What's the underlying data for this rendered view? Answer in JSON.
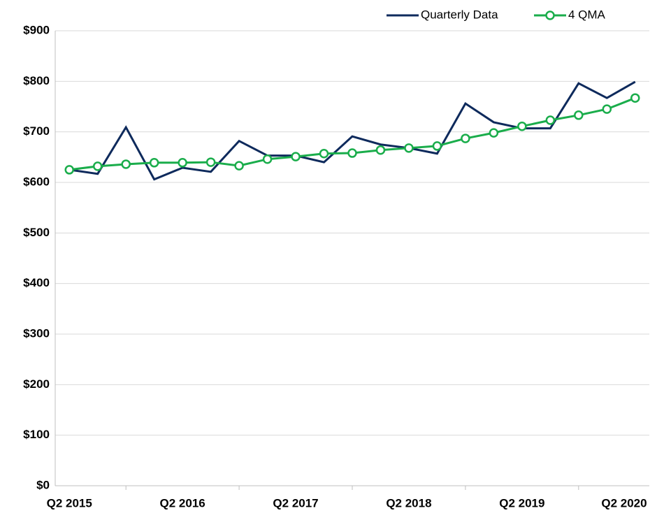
{
  "chart_data": {
    "type": "line",
    "categories": [
      "Q2 2015",
      null,
      null,
      null,
      "Q2 2016",
      null,
      null,
      null,
      "Q2 2017",
      null,
      null,
      null,
      "Q2 2018",
      null,
      null,
      null,
      "Q2 2019",
      null,
      null,
      null,
      "Q2 2020"
    ],
    "series": [
      {
        "name": "Quarterly Data",
        "color": "#0e2a5c",
        "marker": false,
        "values": [
          625,
          617,
          709,
          606,
          629,
          621,
          682,
          653,
          653,
          640,
          691,
          675,
          668,
          657,
          756,
          719,
          707,
          707,
          796,
          767,
          799
        ]
      },
      {
        "name": "4 QMA",
        "color": "#1aad4b",
        "marker": true,
        "values": [
          625,
          632,
          636,
          639,
          639,
          640,
          633,
          646,
          651,
          657,
          658,
          664,
          668,
          672,
          687,
          698,
          711,
          723,
          733,
          745,
          767
        ]
      }
    ],
    "ylim": [
      0,
      900
    ],
    "yticks": [
      {
        "value": 0,
        "label": "$0"
      },
      {
        "value": 100,
        "label": "$100"
      },
      {
        "value": 200,
        "label": "$200"
      },
      {
        "value": 300,
        "label": "$300"
      },
      {
        "value": 400,
        "label": "$400"
      },
      {
        "value": 500,
        "label": "$500"
      },
      {
        "value": 600,
        "label": "$600"
      },
      {
        "value": 700,
        "label": "$700"
      },
      {
        "value": 800,
        "label": "$800"
      },
      {
        "value": 900,
        "label": "$900"
      }
    ],
    "grid": true,
    "legend": "top-right"
  }
}
